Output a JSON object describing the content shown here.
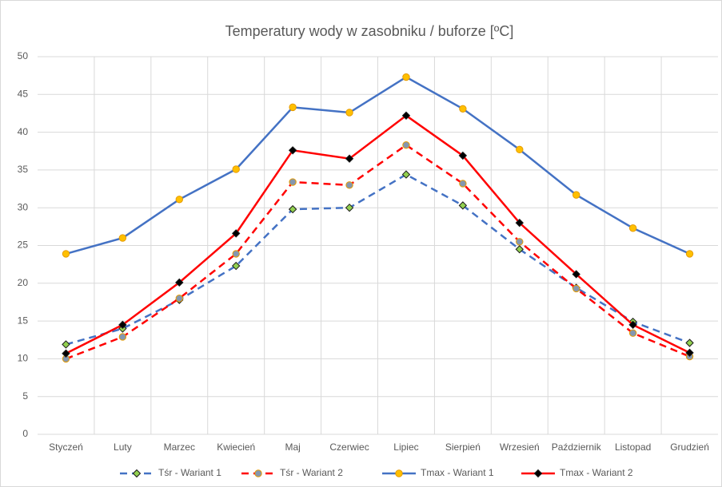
{
  "chart_data": {
    "type": "line",
    "title": "Temperatury wody w zasobniku / buforze [ºC]",
    "categories": [
      "Styczeń",
      "Luty",
      "Marzec",
      "Kwiecień",
      "Maj",
      "Czerwiec",
      "Lipiec",
      "Sierpień",
      "Wrzesień",
      "Październik",
      "Listopad",
      "Grudzień"
    ],
    "ylim": [
      0,
      50
    ],
    "yticks": [
      0,
      5,
      10,
      15,
      20,
      25,
      30,
      35,
      40,
      45,
      50
    ],
    "grid": true,
    "legend": "bottom",
    "series": [
      {
        "name": "Tśr - Wariant 1",
        "color": "#4472c4",
        "dash": true,
        "marker": "diamond",
        "marker_fill": "#92d050",
        "values": [
          11.9,
          14.0,
          17.8,
          22.3,
          29.8,
          30.0,
          34.4,
          30.3,
          24.5,
          19.4,
          14.9,
          12.1
        ]
      },
      {
        "name": "Tśr - Wariant 2",
        "color": "#ff0000",
        "dash": true,
        "marker": "circle",
        "marker_fill": "#8497b0",
        "values": [
          10.0,
          12.9,
          18.0,
          23.9,
          33.4,
          33.0,
          38.3,
          33.2,
          25.5,
          19.3,
          13.4,
          10.3
        ]
      },
      {
        "name": "Tmax - Wariant 1",
        "color": "#4472c4",
        "dash": false,
        "marker": "circle",
        "marker_fill": "#ffc000",
        "values": [
          23.9,
          26.0,
          31.1,
          35.1,
          43.3,
          42.6,
          47.3,
          43.1,
          37.7,
          31.7,
          27.3,
          23.9
        ]
      },
      {
        "name": "Tmax - Wariant 2",
        "color": "#ff0000",
        "dash": false,
        "marker": "diamond",
        "marker_fill": "#000000",
        "values": [
          10.7,
          14.5,
          20.1,
          26.6,
          37.6,
          36.5,
          42.2,
          36.9,
          28.0,
          21.2,
          14.5,
          10.8
        ]
      }
    ]
  }
}
